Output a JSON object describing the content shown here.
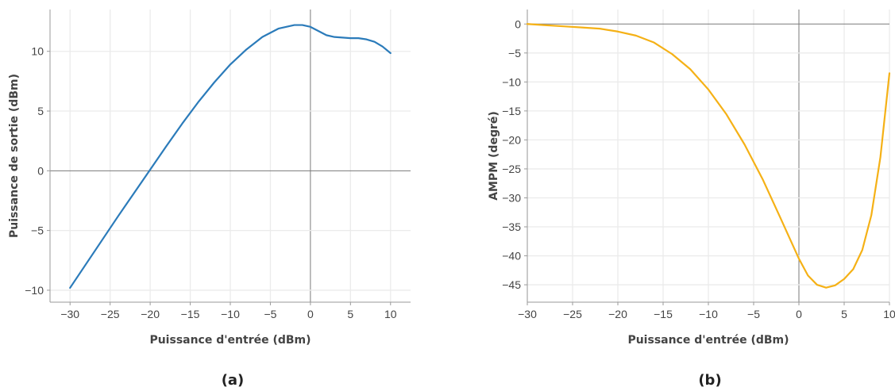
{
  "chart_data": [
    {
      "type": "line",
      "caption": "(a)",
      "xlabel": "Puissance d'entrée (dBm)",
      "ylabel": "Puissance de sortie (dBm)",
      "xlim": [
        -32.5,
        12.5
      ],
      "ylim": [
        -11,
        13.5
      ],
      "xticks": [
        -30,
        -25,
        -20,
        -15,
        -10,
        -5,
        0,
        5,
        10
      ],
      "yticks": [
        -10,
        -5,
        0,
        5,
        10
      ],
      "xtick_labels": [
        "−30",
        "−25",
        "−20",
        "−15",
        "−10",
        "−5",
        "0",
        "5",
        "10"
      ],
      "ytick_labels": [
        "−10",
        "−5",
        "0",
        "5",
        "10"
      ],
      "grid": true,
      "color": "#2b7bba",
      "series": [
        {
          "x": [
            -30,
            -28,
            -26,
            -24,
            -22,
            -20,
            -18,
            -16,
            -14,
            -12,
            -10,
            -8,
            -6,
            -4,
            -2,
            -1,
            0,
            1,
            2,
            3,
            4,
            5,
            6,
            7,
            8,
            9,
            10
          ],
          "y": [
            -9.8,
            -7.8,
            -5.8,
            -3.8,
            -1.85,
            0.1,
            2.05,
            3.95,
            5.75,
            7.4,
            8.9,
            10.15,
            11.2,
            11.9,
            12.2,
            12.2,
            12.05,
            11.7,
            11.35,
            11.2,
            11.15,
            11.1,
            11.1,
            11.0,
            10.8,
            10.4,
            9.85
          ]
        }
      ]
    },
    {
      "type": "line",
      "caption": "(b)",
      "xlabel": "Puissance d'entrée (dBm)",
      "ylabel": "AMPM (degré)",
      "xlim": [
        -30,
        10
      ],
      "ylim": [
        -48,
        2.5
      ],
      "xticks": [
        -30,
        -25,
        -20,
        -15,
        -10,
        -5,
        0,
        5,
        10
      ],
      "yticks": [
        0,
        -5,
        -10,
        -15,
        -20,
        -25,
        -30,
        -35,
        -40,
        -45
      ],
      "xtick_labels": [
        "−30",
        "−25",
        "−20",
        "−15",
        "−10",
        "−5",
        "0",
        "5",
        "10"
      ],
      "ytick_labels": [
        "0",
        "−5",
        "−10",
        "−15",
        "−20",
        "−25",
        "−30",
        "−35",
        "−40",
        "−45"
      ],
      "grid": true,
      "color": "#f5b116",
      "series": [
        {
          "x": [
            -30,
            -28,
            -26,
            -24,
            -22,
            -20,
            -18,
            -16,
            -14,
            -12,
            -10,
            -8,
            -6,
            -4,
            -2,
            0,
            1,
            2,
            3,
            4,
            5,
            6,
            7,
            8,
            9,
            10
          ],
          "y": [
            0,
            -0.2,
            -0.4,
            -0.6,
            -0.8,
            -1.3,
            -2.0,
            -3.2,
            -5.2,
            -7.8,
            -11.3,
            -15.6,
            -20.8,
            -26.8,
            -33.6,
            -40.5,
            -43.4,
            -45.0,
            -45.5,
            -45.1,
            -44.0,
            -42.3,
            -39.0,
            -33.0,
            -23.0,
            -8.5
          ]
        }
      ]
    }
  ]
}
